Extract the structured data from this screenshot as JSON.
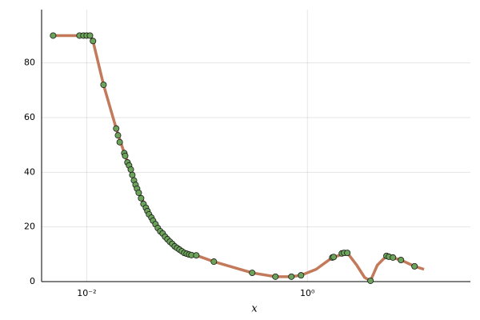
{
  "chart_data": {
    "type": "scatter",
    "x_label": "x",
    "xscale": "log",
    "xlim": [
      0.0039,
      30
    ],
    "ylim": [
      0,
      99.5
    ],
    "xticks": [
      {
        "value": 0.01,
        "label": "10⁻²"
      },
      {
        "value": 1,
        "label": "10⁰"
      }
    ],
    "yticks": [
      0,
      20,
      40,
      60,
      80
    ],
    "grid": true,
    "series": [
      {
        "type": "line",
        "color": "#c27a5b",
        "x": [
          0.00496,
          0.0107,
          0.0114,
          0.0142,
          0.0185,
          0.0219,
          0.0296,
          0.0399,
          0.0539,
          0.0728,
          0.0984,
          0.142,
          0.316,
          0.513,
          0.716,
          0.875,
          1.2,
          1.68,
          2.3,
          2.8,
          3.3,
          3.73,
          4.3,
          5.21,
          7.04,
          9.35,
          11.4
        ],
        "values": [
          90,
          90,
          88,
          72,
          56,
          47,
          32.5,
          22.3,
          15.5,
          11.1,
          9.6,
          7.3,
          3.2,
          1.8,
          1.8,
          2.3,
          4.5,
          8.8,
          10.5,
          6,
          1.5,
          0.3,
          6,
          9.4,
          7.9,
          5.6,
          4.5
        ]
      },
      {
        "type": "scatter",
        "color": "#6ca35a",
        "x": [
          0.00496,
          0.0086,
          0.00935,
          0.01,
          0.0107,
          0.0114,
          0.0142,
          0.0185,
          0.0192,
          0.0199,
          0.0219,
          0.0223,
          0.0234,
          0.0242,
          0.0251,
          0.0259,
          0.0268,
          0.0277,
          0.0286,
          0.0296,
          0.0311,
          0.0327,
          0.0344,
          0.0355,
          0.0367,
          0.0386,
          0.0399,
          0.042,
          0.0441,
          0.0464,
          0.0488,
          0.0513,
          0.0539,
          0.0567,
          0.0596,
          0.0627,
          0.0659,
          0.0693,
          0.0728,
          0.0766,
          0.0805,
          0.0847,
          0.089,
          0.0984,
          0.142,
          0.316,
          0.513,
          0.716,
          0.875,
          1.68,
          1.73,
          2.05,
          2.15,
          2.3,
          3.73,
          5.21,
          5.48,
          5.96,
          7.04,
          9.35
        ],
        "values": [
          90,
          90,
          90,
          90,
          90,
          88,
          72,
          56,
          53.5,
          51,
          47,
          46,
          43.6,
          42.5,
          41,
          39,
          37,
          35.4,
          34,
          32.5,
          30.5,
          28.4,
          27,
          25.8,
          24.6,
          23.4,
          22.3,
          21,
          19.6,
          18.4,
          17.6,
          16.4,
          15.5,
          14.6,
          13.8,
          12.9,
          12.3,
          11.7,
          11.1,
          10.5,
          10.2,
          9.9,
          9.7,
          9.6,
          7.3,
          3.2,
          1.8,
          1.8,
          2.3,
          8.8,
          9,
          10.3,
          10.5,
          10.5,
          0.3,
          9.4,
          9.1,
          8.8,
          7.9,
          5.6
        ]
      }
    ]
  }
}
